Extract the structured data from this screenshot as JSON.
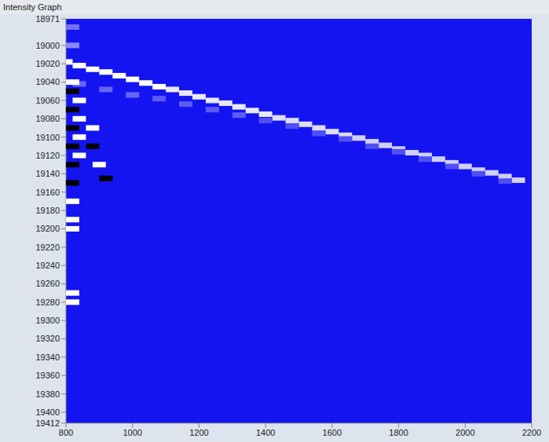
{
  "chart_data": {
    "type": "heatmap",
    "title": "Intensity Graph",
    "color": "#1414f0",
    "grid": false,
    "xlim": [
      800,
      2200
    ],
    "xticks": [
      800,
      1000,
      1200,
      1400,
      1600,
      1800,
      2000,
      2200
    ],
    "ylim": [
      18971,
      19412
    ],
    "yticks": [
      18971,
      19000,
      19020,
      19040,
      19060,
      19080,
      19100,
      19120,
      19140,
      19160,
      19180,
      19200,
      19220,
      19240,
      19260,
      19280,
      19300,
      19320,
      19340,
      19360,
      19380,
      19400,
      19412
    ],
    "cells": [
      [
        800,
        19018,
        1
      ],
      [
        840,
        19022,
        1
      ],
      [
        880,
        19026,
        1
      ],
      [
        920,
        19029,
        1
      ],
      [
        960,
        19033,
        1
      ],
      [
        1000,
        19037,
        1
      ],
      [
        1040,
        19041,
        1
      ],
      [
        1080,
        19045,
        1
      ],
      [
        1120,
        19048,
        0.9
      ],
      [
        1160,
        19052,
        0.9
      ],
      [
        1200,
        19056,
        0.9
      ],
      [
        1240,
        19060,
        0.9
      ],
      [
        1280,
        19063,
        0.9
      ],
      [
        1320,
        19067,
        0.9
      ],
      [
        1360,
        19071,
        0.9
      ],
      [
        1400,
        19075,
        0.9
      ],
      [
        1440,
        19079,
        0.85
      ],
      [
        1480,
        19082,
        0.85
      ],
      [
        1520,
        19086,
        0.85
      ],
      [
        1560,
        19090,
        0.85
      ],
      [
        1600,
        19094,
        0.85
      ],
      [
        1640,
        19098,
        0.85
      ],
      [
        1680,
        19101,
        0.8
      ],
      [
        1720,
        19105,
        0.8
      ],
      [
        1760,
        19109,
        0.8
      ],
      [
        1800,
        19113,
        0.8
      ],
      [
        1840,
        19117,
        0.8
      ],
      [
        1880,
        19120,
        0.8
      ],
      [
        1920,
        19124,
        0.8
      ],
      [
        1960,
        19128,
        0.8
      ],
      [
        2000,
        19132,
        0.8
      ],
      [
        2040,
        19136,
        0.8
      ],
      [
        2080,
        19139,
        0.8
      ],
      [
        2120,
        19143,
        0.8
      ],
      [
        2160,
        19147,
        0.8
      ],
      [
        840,
        19042,
        0.35
      ],
      [
        920,
        19048,
        0.35
      ],
      [
        1000,
        19054,
        0.35
      ],
      [
        1080,
        19058,
        0.3
      ],
      [
        1160,
        19064,
        0.3
      ],
      [
        1240,
        19070,
        0.3
      ],
      [
        1320,
        19076,
        0.3
      ],
      [
        1400,
        19082,
        0.25
      ],
      [
        1480,
        19088,
        0.25
      ],
      [
        1560,
        19096,
        0.25
      ],
      [
        1640,
        19102,
        0.25
      ],
      [
        1720,
        19110,
        0.25
      ],
      [
        1800,
        19116,
        0.25
      ],
      [
        1880,
        19124,
        0.25
      ],
      [
        1960,
        19132,
        0.25
      ],
      [
        2040,
        19140,
        0.25
      ],
      [
        2120,
        19148,
        0.25
      ],
      [
        820,
        18980,
        0.4
      ],
      [
        820,
        19000,
        0.5
      ],
      [
        820,
        19040,
        1
      ],
      [
        820,
        19050,
        -1
      ],
      [
        840,
        19060,
        1
      ],
      [
        820,
        19070,
        -1
      ],
      [
        840,
        19080,
        1
      ],
      [
        820,
        19090,
        -1
      ],
      [
        840,
        19100,
        1
      ],
      [
        820,
        19110,
        -1
      ],
      [
        840,
        19120,
        1
      ],
      [
        820,
        19130,
        -1
      ],
      [
        820,
        19150,
        -1
      ],
      [
        820,
        19170,
        1
      ],
      [
        820,
        19190,
        1
      ],
      [
        820,
        19200,
        1
      ],
      [
        820,
        19270,
        1
      ],
      [
        820,
        19280,
        1
      ],
      [
        880,
        19090,
        1
      ],
      [
        880,
        19110,
        -1
      ],
      [
        900,
        19130,
        1
      ],
      [
        920,
        19145,
        -1
      ]
    ]
  }
}
